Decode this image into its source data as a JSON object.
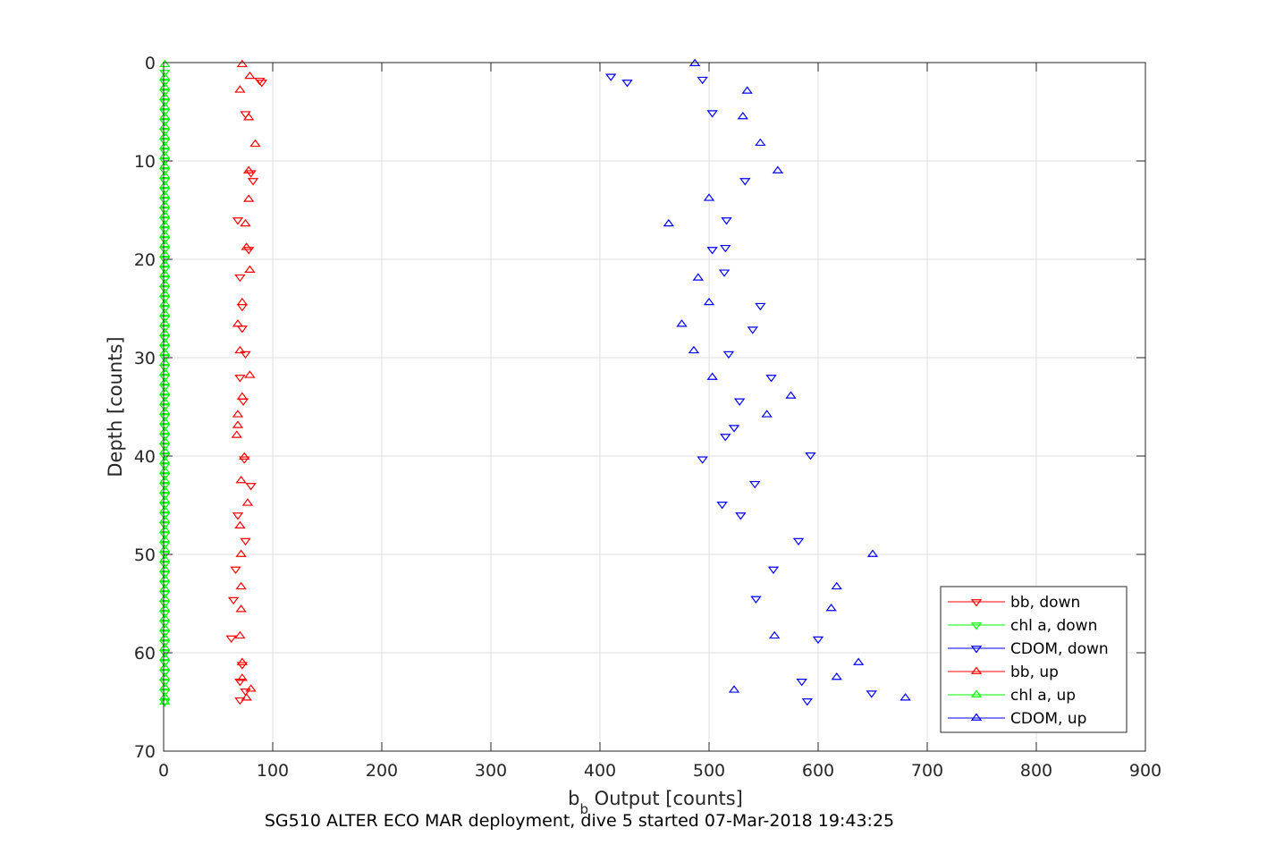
{
  "chart_data": {
    "type": "scatter",
    "caption": "SG510 ALTER ECO MAR deployment, dive 5 started 07-Mar-2018 19:43:25",
    "xlabel_main": "b",
    "xlabel_sub": "b",
    "xlabel_rest": " Output [counts]",
    "ylabel": "Depth [counts]",
    "xlim": [
      0,
      900
    ],
    "ylim": [
      0,
      70
    ],
    "y_reversed": true,
    "grid": true,
    "legend_position": "bottom-right",
    "xticks": [
      0,
      100,
      200,
      300,
      400,
      500,
      600,
      700,
      800,
      900
    ],
    "yticks": [
      0,
      10,
      20,
      30,
      40,
      50,
      60,
      70
    ],
    "xtick_labels": [
      "0",
      "100",
      "200",
      "300",
      "400",
      "500",
      "600",
      "700",
      "800",
      "900"
    ],
    "ytick_labels": [
      "0",
      "10",
      "20",
      "30",
      "40",
      "50",
      "60",
      "70"
    ],
    "series": [
      {
        "name": "bb, down",
        "color": "#ff0000",
        "marker": "triangle-down",
        "points": [
          [
            88,
            1.8
          ],
          [
            90,
            2.0
          ],
          [
            75,
            5.2
          ],
          [
            80,
            11.2
          ],
          [
            82,
            12.0
          ],
          [
            68,
            16.0
          ],
          [
            78,
            19.0
          ],
          [
            70,
            21.8
          ],
          [
            72,
            24.8
          ],
          [
            72,
            27.0
          ],
          [
            75,
            29.6
          ],
          [
            70,
            32.0
          ],
          [
            73,
            34.4
          ],
          [
            74,
            40.3
          ],
          [
            80,
            43.0
          ],
          [
            68,
            46.0
          ],
          [
            75,
            48.6
          ],
          [
            66,
            51.5
          ],
          [
            64,
            54.6
          ],
          [
            62,
            58.5
          ],
          [
            72,
            61.2
          ],
          [
            70,
            62.9
          ],
          [
            75,
            63.9
          ],
          [
            70,
            64.8
          ]
        ]
      },
      {
        "name": "chl a, down",
        "color": "#00ff00",
        "marker": "triangle-down",
        "points": [
          [
            1,
            1.0
          ],
          [
            1,
            2.0
          ],
          [
            1,
            3.0
          ],
          [
            1,
            4.0
          ],
          [
            1,
            5.0
          ],
          [
            1,
            6.0
          ],
          [
            1,
            7.0
          ],
          [
            1,
            8.0
          ],
          [
            1,
            9.0
          ],
          [
            1,
            10.0
          ],
          [
            1,
            11.0
          ],
          [
            1,
            12.0
          ],
          [
            1,
            13.0
          ],
          [
            1,
            14.0
          ],
          [
            1,
            15.0
          ],
          [
            1,
            16.0
          ],
          [
            1,
            17.0
          ],
          [
            1,
            18.0
          ],
          [
            1,
            19.0
          ],
          [
            1,
            20.0
          ],
          [
            1,
            21.0
          ],
          [
            1,
            22.0
          ],
          [
            1,
            23.0
          ],
          [
            1,
            24.0
          ],
          [
            1,
            25.0
          ],
          [
            1,
            26.0
          ],
          [
            1,
            27.0
          ],
          [
            1,
            28.0
          ],
          [
            1,
            29.0
          ],
          [
            1,
            30.0
          ],
          [
            1,
            31.0
          ],
          [
            1,
            32.0
          ],
          [
            1,
            33.0
          ],
          [
            1,
            34.0
          ],
          [
            1,
            35.0
          ],
          [
            1,
            36.0
          ],
          [
            1,
            37.0
          ],
          [
            1,
            38.0
          ],
          [
            1,
            39.0
          ],
          [
            1,
            40.0
          ],
          [
            1,
            41.0
          ],
          [
            1,
            42.0
          ],
          [
            1,
            43.0
          ],
          [
            1,
            44.0
          ],
          [
            1,
            45.0
          ],
          [
            1,
            46.0
          ],
          [
            1,
            47.0
          ],
          [
            1,
            48.0
          ],
          [
            1,
            49.0
          ],
          [
            1,
            50.0
          ],
          [
            1,
            51.0
          ],
          [
            1,
            52.0
          ],
          [
            1,
            53.0
          ],
          [
            1,
            54.0
          ],
          [
            1,
            55.0
          ],
          [
            1,
            56.0
          ],
          [
            1,
            57.0
          ],
          [
            1,
            58.0
          ],
          [
            1,
            59.0
          ],
          [
            1,
            60.0
          ],
          [
            1,
            61.0
          ],
          [
            1,
            62.0
          ],
          [
            1,
            63.0
          ],
          [
            1,
            64.0
          ],
          [
            1,
            65.0
          ]
        ]
      },
      {
        "name": "CDOM, down",
        "color": "#0000ff",
        "marker": "triangle-down",
        "points": [
          [
            410,
            1.4
          ],
          [
            425,
            2.0
          ],
          [
            494,
            1.7
          ],
          [
            503,
            5.1
          ],
          [
            533,
            12.0
          ],
          [
            516,
            16.0
          ],
          [
            515,
            18.8
          ],
          [
            503,
            19.0
          ],
          [
            514,
            21.3
          ],
          [
            547,
            24.7
          ],
          [
            540,
            27.1
          ],
          [
            518,
            29.6
          ],
          [
            557,
            32.0
          ],
          [
            528,
            34.4
          ],
          [
            523,
            37.1
          ],
          [
            515,
            38.0
          ],
          [
            593,
            39.9
          ],
          [
            494,
            40.3
          ],
          [
            542,
            42.8
          ],
          [
            512,
            44.9
          ],
          [
            529,
            46.0
          ],
          [
            582,
            48.6
          ],
          [
            559,
            51.5
          ],
          [
            543,
            54.5
          ],
          [
            600,
            58.6
          ],
          [
            585,
            62.9
          ],
          [
            649,
            64.1
          ],
          [
            590,
            64.9
          ]
        ]
      },
      {
        "name": "bb, up",
        "color": "#ff0000",
        "marker": "triangle-up",
        "points": [
          [
            72,
            0.2
          ],
          [
            79,
            1.4
          ],
          [
            70,
            2.8
          ],
          [
            78,
            5.6
          ],
          [
            84,
            8.3
          ],
          [
            78,
            11.0
          ],
          [
            78,
            13.9
          ],
          [
            75,
            16.4
          ],
          [
            76,
            18.8
          ],
          [
            79,
            21.1
          ],
          [
            72,
            24.4
          ],
          [
            68,
            26.6
          ],
          [
            70,
            29.3
          ],
          [
            79,
            31.8
          ],
          [
            72,
            34.0
          ],
          [
            68,
            35.8
          ],
          [
            68,
            36.9
          ],
          [
            67,
            37.9
          ],
          [
            74,
            40.1
          ],
          [
            71,
            42.5
          ],
          [
            77,
            44.8
          ],
          [
            70,
            47.1
          ],
          [
            71,
            50.0
          ],
          [
            71,
            53.3
          ],
          [
            71,
            55.6
          ],
          [
            70,
            58.3
          ],
          [
            72,
            61.0
          ],
          [
            72,
            62.6
          ],
          [
            80,
            63.7
          ],
          [
            76,
            64.6
          ]
        ]
      },
      {
        "name": "chl a, up",
        "color": "#00ff00",
        "marker": "triangle-up",
        "points": [
          [
            1,
            0.2
          ],
          [
            1,
            1.5
          ],
          [
            1,
            2.5
          ],
          [
            1,
            3.5
          ],
          [
            1,
            4.5
          ],
          [
            1,
            5.5
          ],
          [
            1,
            6.5
          ],
          [
            1,
            7.5
          ],
          [
            1,
            8.5
          ],
          [
            1,
            9.5
          ],
          [
            1,
            10.5
          ],
          [
            1,
            11.5
          ],
          [
            1,
            12.5
          ],
          [
            1,
            13.5
          ],
          [
            1,
            14.5
          ],
          [
            1,
            15.5
          ],
          [
            1,
            16.5
          ],
          [
            1,
            17.5
          ],
          [
            1,
            18.5
          ],
          [
            1,
            19.5
          ],
          [
            1,
            20.5
          ],
          [
            1,
            21.5
          ],
          [
            1,
            22.5
          ],
          [
            1,
            23.5
          ],
          [
            1,
            24.5
          ],
          [
            1,
            25.5
          ],
          [
            1,
            26.5
          ],
          [
            1,
            27.5
          ],
          [
            1,
            28.5
          ],
          [
            1,
            29.5
          ],
          [
            1,
            30.5
          ],
          [
            1,
            31.5
          ],
          [
            1,
            32.5
          ],
          [
            1,
            33.5
          ],
          [
            1,
            34.5
          ],
          [
            1,
            35.5
          ],
          [
            1,
            36.5
          ],
          [
            1,
            37.5
          ],
          [
            1,
            38.5
          ],
          [
            1,
            39.5
          ],
          [
            1,
            40.5
          ],
          [
            1,
            41.5
          ],
          [
            1,
            42.5
          ],
          [
            1,
            43.5
          ],
          [
            1,
            44.5
          ],
          [
            1,
            45.5
          ],
          [
            1,
            46.5
          ],
          [
            1,
            47.5
          ],
          [
            1,
            48.5
          ],
          [
            1,
            49.5
          ],
          [
            1,
            50.5
          ],
          [
            1,
            51.5
          ],
          [
            1,
            52.5
          ],
          [
            1,
            53.5
          ],
          [
            1,
            54.5
          ],
          [
            1,
            55.5
          ],
          [
            1,
            56.5
          ],
          [
            1,
            57.5
          ],
          [
            1,
            58.5
          ],
          [
            1,
            59.5
          ],
          [
            1,
            60.5
          ],
          [
            1,
            61.5
          ],
          [
            1,
            62.5
          ],
          [
            1,
            63.5
          ],
          [
            1,
            64.5
          ],
          [
            1,
            65.0
          ]
        ]
      },
      {
        "name": "CDOM, up",
        "color": "#0000ff",
        "marker": "triangle-up",
        "points": [
          [
            487,
            0.1
          ],
          [
            535,
            2.9
          ],
          [
            531,
            5.5
          ],
          [
            547,
            8.2
          ],
          [
            563,
            11.0
          ],
          [
            500,
            13.8
          ],
          [
            463,
            16.4
          ],
          [
            490,
            21.9
          ],
          [
            500,
            24.4
          ],
          [
            475,
            26.6
          ],
          [
            486,
            29.3
          ],
          [
            503,
            32.0
          ],
          [
            575,
            33.9
          ],
          [
            553,
            35.8
          ],
          [
            650,
            50.0
          ],
          [
            617,
            53.3
          ],
          [
            612,
            55.5
          ],
          [
            560,
            58.3
          ],
          [
            637,
            61.0
          ],
          [
            617,
            62.5
          ],
          [
            523,
            63.8
          ],
          [
            680,
            64.6
          ]
        ]
      }
    ]
  }
}
